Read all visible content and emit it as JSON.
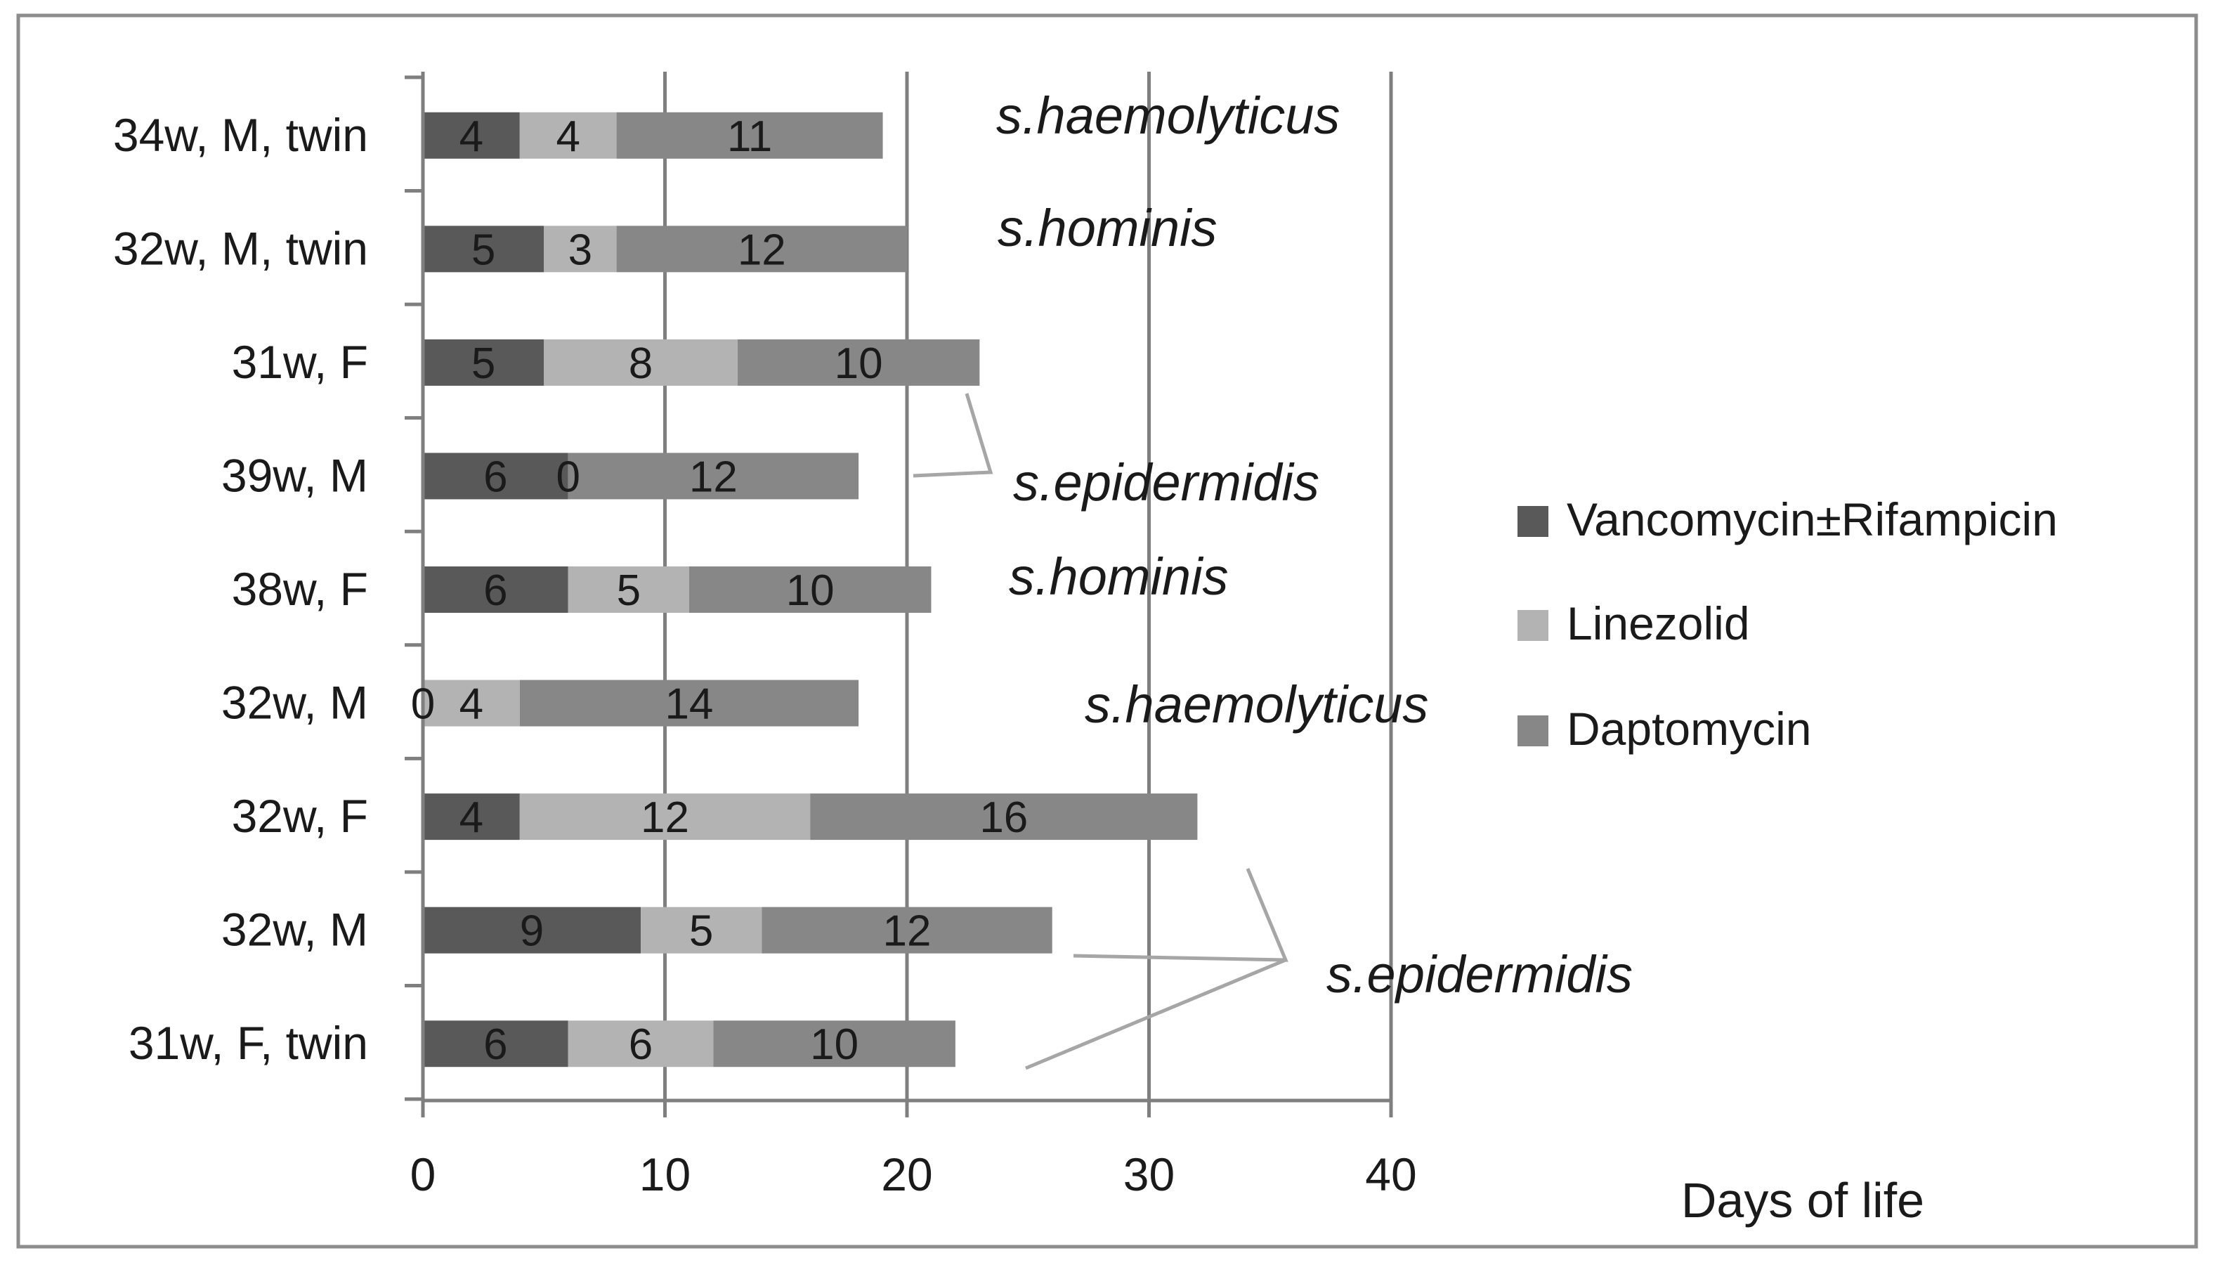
{
  "chart_data": {
    "type": "bar",
    "orientation": "horizontal",
    "stacked": true,
    "categories": [
      "34w, M, twin",
      "32w, M, twin",
      "31w, F",
      "39w, M",
      "38w, F",
      "32w, M",
      "32w, F",
      "32w, M",
      "31w, F, twin"
    ],
    "series": [
      {
        "name": "Vancomycin±Rifampicin",
        "color": "#595959",
        "values": [
          4,
          5,
          5,
          6,
          6,
          0,
          4,
          9,
          6
        ]
      },
      {
        "name": "Linezolid",
        "color": "#b3b3b3",
        "values": [
          4,
          3,
          8,
          0,
          5,
          4,
          12,
          5,
          6
        ]
      },
      {
        "name": "Daptomycin",
        "color": "#878787",
        "values": [
          11,
          12,
          10,
          12,
          10,
          14,
          16,
          12,
          10
        ]
      }
    ],
    "xlim": [
      0,
      40
    ],
    "xticks": [
      0,
      10,
      20,
      30,
      40
    ],
    "xlabel": "Days of life",
    "ylabel": "",
    "title": "",
    "grid": "vertical",
    "legend_position": "right",
    "annotations": [
      {
        "text": "s.haemolyticus",
        "row": 0
      },
      {
        "text": "s.hominis",
        "row": 1
      },
      {
        "text": "s.epidermidis",
        "rows": [
          2,
          3
        ]
      },
      {
        "text": "s.hominis",
        "row": 4
      },
      {
        "text": "s.haemolyticus",
        "row": 5
      },
      {
        "text": "s.epidermidis",
        "rows": [
          6,
          7,
          8
        ]
      }
    ]
  }
}
